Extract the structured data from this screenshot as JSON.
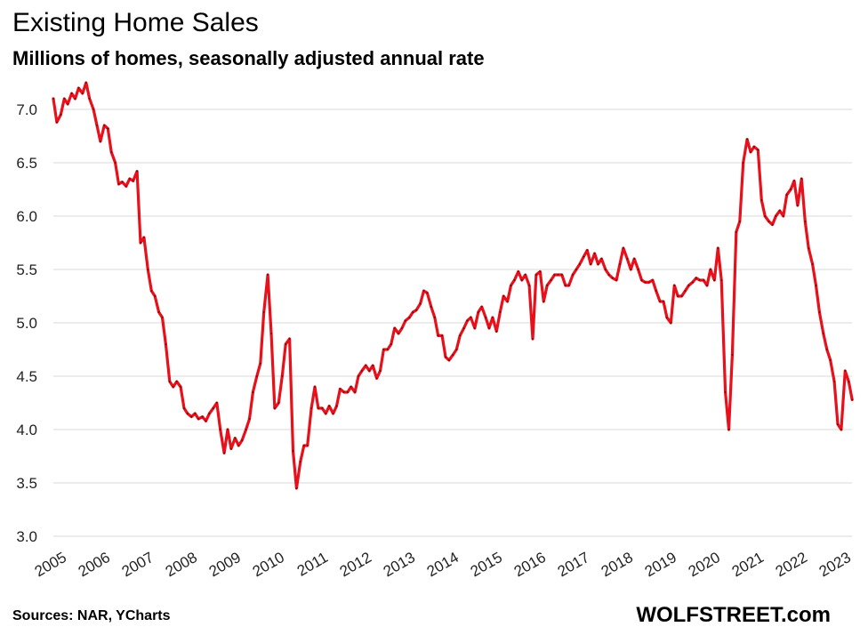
{
  "chart_data": {
    "type": "line",
    "title": "Existing Home Sales",
    "subtitle": "Millions of homes, seasonally adjusted annual rate",
    "xlabel": "",
    "ylabel": "",
    "x_ticks": [
      "2005",
      "2006",
      "2007",
      "2008",
      "2009",
      "2010",
      "2011",
      "2012",
      "2013",
      "2014",
      "2015",
      "2016",
      "2017",
      "2018",
      "2019",
      "2020",
      "2021",
      "2022",
      "2023"
    ],
    "y_ticks": [
      "3.0",
      "3.5",
      "4.0",
      "4.5",
      "5.0",
      "5.5",
      "6.0",
      "6.5",
      "7.0"
    ],
    "ylim": [
      3.0,
      7.25
    ],
    "xlim": [
      2005.0,
      2023.35
    ],
    "grid": "horizontal",
    "line_color": "#e8101a",
    "series": [
      {
        "points": [
          [
            2005.0,
            7.1
          ],
          [
            2005.08,
            6.88
          ],
          [
            2005.17,
            6.95
          ],
          [
            2005.25,
            7.1
          ],
          [
            2005.33,
            7.05
          ],
          [
            2005.42,
            7.15
          ],
          [
            2005.5,
            7.1
          ],
          [
            2005.58,
            7.2
          ],
          [
            2005.67,
            7.15
          ],
          [
            2005.75,
            7.25
          ],
          [
            2005.83,
            7.1
          ],
          [
            2005.92,
            7.0
          ],
          [
            2006.0,
            6.85
          ],
          [
            2006.08,
            6.7
          ],
          [
            2006.17,
            6.85
          ],
          [
            2006.25,
            6.82
          ],
          [
            2006.33,
            6.6
          ],
          [
            2006.42,
            6.5
          ],
          [
            2006.5,
            6.3
          ],
          [
            2006.58,
            6.32
          ],
          [
            2006.67,
            6.28
          ],
          [
            2006.75,
            6.35
          ],
          [
            2006.83,
            6.33
          ],
          [
            2006.92,
            6.42
          ],
          [
            2007.0,
            5.75
          ],
          [
            2007.08,
            5.8
          ],
          [
            2007.17,
            5.5
          ],
          [
            2007.25,
            5.3
          ],
          [
            2007.33,
            5.25
          ],
          [
            2007.42,
            5.1
          ],
          [
            2007.5,
            5.05
          ],
          [
            2007.58,
            4.8
          ],
          [
            2007.67,
            4.45
          ],
          [
            2007.75,
            4.4
          ],
          [
            2007.83,
            4.45
          ],
          [
            2007.92,
            4.4
          ],
          [
            2008.0,
            4.2
          ],
          [
            2008.08,
            4.15
          ],
          [
            2008.17,
            4.12
          ],
          [
            2008.25,
            4.15
          ],
          [
            2008.33,
            4.1
          ],
          [
            2008.42,
            4.12
          ],
          [
            2008.5,
            4.08
          ],
          [
            2008.58,
            4.15
          ],
          [
            2008.67,
            4.2
          ],
          [
            2008.75,
            4.25
          ],
          [
            2008.83,
            4.0
          ],
          [
            2008.92,
            3.78
          ],
          [
            2009.0,
            4.0
          ],
          [
            2009.08,
            3.82
          ],
          [
            2009.17,
            3.92
          ],
          [
            2009.25,
            3.85
          ],
          [
            2009.33,
            3.9
          ],
          [
            2009.42,
            4.0
          ],
          [
            2009.5,
            4.1
          ],
          [
            2009.58,
            4.35
          ],
          [
            2009.67,
            4.5
          ],
          [
            2009.75,
            4.62
          ],
          [
            2009.83,
            5.1
          ],
          [
            2009.92,
            5.45
          ],
          [
            2010.0,
            4.9
          ],
          [
            2010.08,
            4.2
          ],
          [
            2010.17,
            4.25
          ],
          [
            2010.25,
            4.5
          ],
          [
            2010.33,
            4.8
          ],
          [
            2010.42,
            4.85
          ],
          [
            2010.5,
            3.8
          ],
          [
            2010.58,
            3.45
          ],
          [
            2010.67,
            3.7
          ],
          [
            2010.75,
            3.85
          ],
          [
            2010.83,
            3.85
          ],
          [
            2010.92,
            4.2
          ],
          [
            2011.0,
            4.4
          ],
          [
            2011.08,
            4.2
          ],
          [
            2011.17,
            4.2
          ],
          [
            2011.25,
            4.15
          ],
          [
            2011.33,
            4.22
          ],
          [
            2011.42,
            4.15
          ],
          [
            2011.5,
            4.22
          ],
          [
            2011.58,
            4.38
          ],
          [
            2011.67,
            4.35
          ],
          [
            2011.75,
            4.35
          ],
          [
            2011.83,
            4.4
          ],
          [
            2011.92,
            4.35
          ],
          [
            2012.0,
            4.5
          ],
          [
            2012.08,
            4.55
          ],
          [
            2012.17,
            4.6
          ],
          [
            2012.25,
            4.55
          ],
          [
            2012.33,
            4.6
          ],
          [
            2012.42,
            4.48
          ],
          [
            2012.5,
            4.55
          ],
          [
            2012.58,
            4.75
          ],
          [
            2012.67,
            4.75
          ],
          [
            2012.75,
            4.8
          ],
          [
            2012.83,
            4.95
          ],
          [
            2012.92,
            4.9
          ],
          [
            2013.0,
            4.95
          ],
          [
            2013.08,
            5.02
          ],
          [
            2013.17,
            5.05
          ],
          [
            2013.25,
            5.1
          ],
          [
            2013.33,
            5.12
          ],
          [
            2013.42,
            5.18
          ],
          [
            2013.5,
            5.3
          ],
          [
            2013.58,
            5.28
          ],
          [
            2013.67,
            5.15
          ],
          [
            2013.75,
            5.05
          ],
          [
            2013.83,
            4.88
          ],
          [
            2013.92,
            4.88
          ],
          [
            2014.0,
            4.68
          ],
          [
            2014.08,
            4.65
          ],
          [
            2014.17,
            4.7
          ],
          [
            2014.25,
            4.75
          ],
          [
            2014.33,
            4.88
          ],
          [
            2014.42,
            4.95
          ],
          [
            2014.5,
            5.02
          ],
          [
            2014.58,
            5.05
          ],
          [
            2014.67,
            4.95
          ],
          [
            2014.75,
            5.1
          ],
          [
            2014.83,
            5.15
          ],
          [
            2014.92,
            5.05
          ],
          [
            2015.0,
            4.95
          ],
          [
            2015.08,
            5.05
          ],
          [
            2015.17,
            4.92
          ],
          [
            2015.25,
            5.1
          ],
          [
            2015.33,
            5.25
          ],
          [
            2015.42,
            5.2
          ],
          [
            2015.5,
            5.35
          ],
          [
            2015.58,
            5.4
          ],
          [
            2015.67,
            5.48
          ],
          [
            2015.75,
            5.4
          ],
          [
            2015.83,
            5.45
          ],
          [
            2015.92,
            5.35
          ],
          [
            2016.0,
            4.85
          ],
          [
            2016.08,
            5.45
          ],
          [
            2016.17,
            5.48
          ],
          [
            2016.25,
            5.2
          ],
          [
            2016.33,
            5.35
          ],
          [
            2016.42,
            5.4
          ],
          [
            2016.5,
            5.45
          ],
          [
            2016.58,
            5.45
          ],
          [
            2016.67,
            5.45
          ],
          [
            2016.75,
            5.35
          ],
          [
            2016.83,
            5.35
          ],
          [
            2016.92,
            5.45
          ],
          [
            2017.0,
            5.5
          ],
          [
            2017.08,
            5.55
          ],
          [
            2017.17,
            5.62
          ],
          [
            2017.25,
            5.68
          ],
          [
            2017.33,
            5.55
          ],
          [
            2017.42,
            5.65
          ],
          [
            2017.5,
            5.55
          ],
          [
            2017.58,
            5.6
          ],
          [
            2017.67,
            5.5
          ],
          [
            2017.75,
            5.45
          ],
          [
            2017.83,
            5.42
          ],
          [
            2017.92,
            5.4
          ],
          [
            2018.0,
            5.55
          ],
          [
            2018.08,
            5.7
          ],
          [
            2018.17,
            5.6
          ],
          [
            2018.25,
            5.5
          ],
          [
            2018.33,
            5.6
          ],
          [
            2018.42,
            5.5
          ],
          [
            2018.5,
            5.4
          ],
          [
            2018.58,
            5.38
          ],
          [
            2018.67,
            5.38
          ],
          [
            2018.75,
            5.4
          ],
          [
            2018.83,
            5.3
          ],
          [
            2018.92,
            5.2
          ],
          [
            2019.0,
            5.2
          ],
          [
            2019.08,
            5.05
          ],
          [
            2019.17,
            5.0
          ],
          [
            2019.25,
            5.35
          ],
          [
            2019.33,
            5.25
          ],
          [
            2019.42,
            5.25
          ],
          [
            2019.5,
            5.3
          ],
          [
            2019.58,
            5.35
          ],
          [
            2019.67,
            5.38
          ],
          [
            2019.75,
            5.42
          ],
          [
            2019.83,
            5.4
          ],
          [
            2019.92,
            5.4
          ],
          [
            2020.0,
            5.35
          ],
          [
            2020.08,
            5.5
          ],
          [
            2020.17,
            5.4
          ],
          [
            2020.25,
            5.7
          ],
          [
            2020.33,
            5.4
          ],
          [
            2020.42,
            4.35
          ],
          [
            2020.5,
            4.0
          ],
          [
            2020.58,
            4.7
          ],
          [
            2020.67,
            5.85
          ],
          [
            2020.75,
            5.95
          ],
          [
            2020.83,
            6.5
          ],
          [
            2020.92,
            6.72
          ],
          [
            2021.0,
            6.6
          ],
          [
            2021.08,
            6.65
          ],
          [
            2021.17,
            6.62
          ],
          [
            2021.25,
            6.15
          ],
          [
            2021.33,
            6.0
          ],
          [
            2021.42,
            5.95
          ],
          [
            2021.5,
            5.92
          ],
          [
            2021.58,
            6.0
          ],
          [
            2021.67,
            6.05
          ],
          [
            2021.75,
            6.0
          ],
          [
            2021.83,
            6.2
          ],
          [
            2021.92,
            6.25
          ],
          [
            2022.0,
            6.33
          ],
          [
            2022.08,
            6.1
          ],
          [
            2022.17,
            6.35
          ],
          [
            2022.25,
            5.95
          ],
          [
            2022.33,
            5.7
          ],
          [
            2022.42,
            5.55
          ],
          [
            2022.5,
            5.35
          ],
          [
            2022.58,
            5.1
          ],
          [
            2022.67,
            4.9
          ],
          [
            2022.75,
            4.75
          ],
          [
            2022.83,
            4.65
          ],
          [
            2022.92,
            4.45
          ],
          [
            2023.0,
            4.05
          ],
          [
            2023.08,
            4.0
          ],
          [
            2023.17,
            4.55
          ],
          [
            2023.25,
            4.45
          ],
          [
            2023.33,
            4.28
          ]
        ]
      }
    ]
  },
  "footer": {
    "source": "Sources: NAR, YCharts",
    "brand": "WOLFSTREET.com"
  }
}
